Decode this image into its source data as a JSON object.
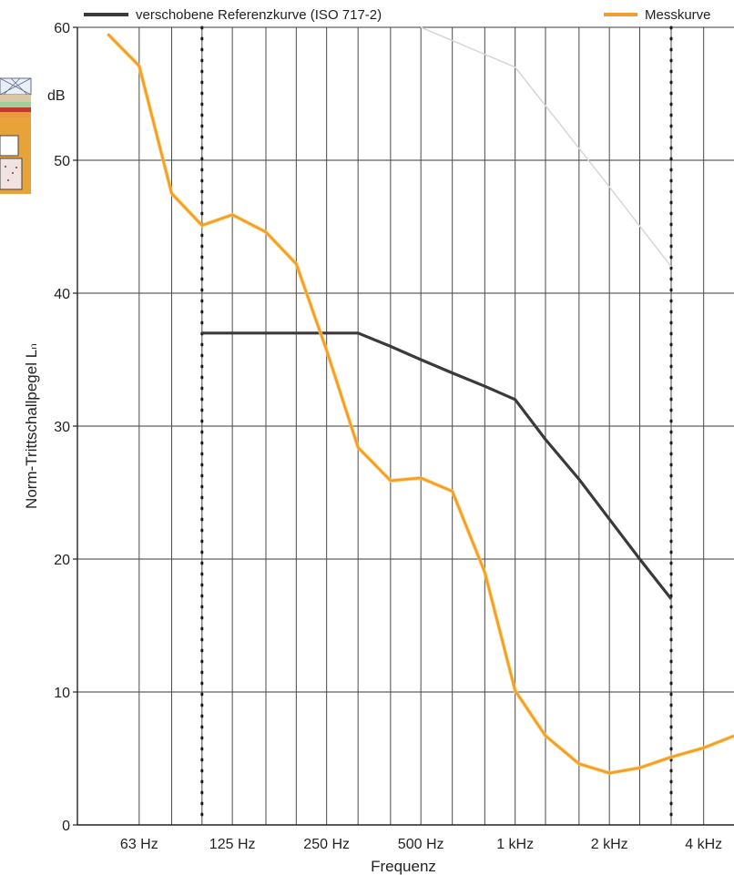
{
  "chart_data": {
    "type": "line",
    "xlabel": "Frequenz",
    "ylabel": "Norm-Trittschallpegel Lₙ",
    "yunit": "dB",
    "ylim": [
      0,
      60
    ],
    "yticks": [
      0,
      10,
      20,
      30,
      40,
      50,
      60
    ],
    "x_scale": "log",
    "xlim_hz": [
      40,
      5000
    ],
    "x_ticks": [
      {
        "hz": 63,
        "label": "63 Hz"
      },
      {
        "hz": 125,
        "label": "125 Hz"
      },
      {
        "hz": 250,
        "label": "250 Hz"
      },
      {
        "hz": 500,
        "label": "500 Hz"
      },
      {
        "hz": 1000,
        "label": "1 kHz"
      },
      {
        "hz": 2000,
        "label": "2 kHz"
      },
      {
        "hz": 4000,
        "label": "4 kHz"
      }
    ],
    "x_minor_hz": [
      80,
      100,
      160,
      200,
      315,
      400,
      630,
      800,
      1250,
      1600,
      2500,
      3150,
      5000
    ],
    "vertical_markers_hz": [
      100,
      3150
    ],
    "grid": true,
    "legend_position": "top",
    "series": [
      {
        "name": "verschobene Referenzkurve (ISO 717-2)",
        "color": "#3a3a3a",
        "x": [
          100,
          125,
          160,
          200,
          250,
          315,
          400,
          500,
          630,
          800,
          1000,
          1250,
          1600,
          2000,
          2500,
          3150
        ],
        "y": [
          37,
          37,
          37,
          37,
          37,
          37,
          36,
          35,
          34,
          33,
          32,
          29,
          26,
          23,
          20,
          17
        ]
      },
      {
        "name": "Messkurve",
        "color": "#f39c34",
        "x": [
          50,
          63,
          80,
          100,
          125,
          160,
          200,
          250,
          315,
          400,
          500,
          630,
          800,
          1000,
          1250,
          1600,
          2000,
          2500,
          3150,
          4000,
          5000
        ],
        "y": [
          59.5,
          57.1,
          47.5,
          45.1,
          45.9,
          44.6,
          42.2,
          35.7,
          28.4,
          25.9,
          26.1,
          25.1,
          19.0,
          10.1,
          6.7,
          4.6,
          3.9,
          4.3,
          5.1,
          5.8,
          6.7
        ]
      }
    ],
    "faint_series": {
      "color": "#d6d6d6",
      "x": [
        500,
        1000,
        2000,
        3150
      ],
      "y": [
        60,
        57,
        48,
        42
      ]
    }
  }
}
